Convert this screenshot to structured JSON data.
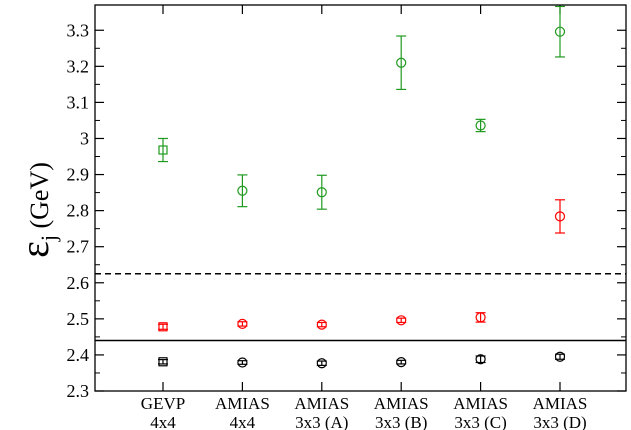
{
  "chart_data": {
    "type": "scatter",
    "ylabel": "εj (GeV)",
    "ylabel_main": "ε",
    "ylabel_sub": "j",
    "ylabel_rest": " (GeV)",
    "ylim": [
      2.3,
      3.37
    ],
    "yticks": [
      "2.3",
      "2.4",
      "2.5",
      "2.6",
      "2.7",
      "2.8",
      "2.9",
      "3",
      "3.1",
      "3.2",
      "3.3"
    ],
    "categories": [
      [
        "GEVP",
        "4x4"
      ],
      [
        "AMIAS",
        "4x4"
      ],
      [
        "AMIAS",
        "3x3 (A)"
      ],
      [
        "AMIAS",
        "3x3 (B)"
      ],
      [
        "AMIAS",
        "3x3 (C)"
      ],
      [
        "AMIAS",
        "3x3 (D)"
      ]
    ],
    "hlines": [
      {
        "value": 2.44,
        "style": "solid",
        "color": "#000000"
      },
      {
        "value": 2.625,
        "style": "dashed",
        "color": "#000000"
      }
    ],
    "series": [
      {
        "color": "#000000",
        "points": [
          {
            "x": 0,
            "y": 2.381,
            "err": 0.006,
            "marker": "square"
          },
          {
            "x": 1,
            "y": 2.379,
            "err": 0.005,
            "marker": "circle"
          },
          {
            "x": 2,
            "y": 2.377,
            "err": 0.006,
            "marker": "circle"
          },
          {
            "x": 3,
            "y": 2.38,
            "err": 0.005,
            "marker": "circle"
          },
          {
            "x": 4,
            "y": 2.388,
            "err": 0.009,
            "marker": "circle"
          },
          {
            "x": 5,
            "y": 2.395,
            "err": 0.007,
            "marker": "circle"
          }
        ]
      },
      {
        "color": "#ff0000",
        "points": [
          {
            "x": 0,
            "y": 2.478,
            "err": 0.007,
            "marker": "square"
          },
          {
            "x": 1,
            "y": 2.486,
            "err": 0.006,
            "marker": "circle"
          },
          {
            "x": 2,
            "y": 2.484,
            "err": 0.006,
            "marker": "circle"
          },
          {
            "x": 3,
            "y": 2.496,
            "err": 0.006,
            "marker": "circle"
          },
          {
            "x": 4,
            "y": 2.504,
            "err": 0.013,
            "marker": "circle"
          },
          {
            "x": 5,
            "y": 2.784,
            "err": 0.046,
            "marker": "circle"
          }
        ]
      },
      {
        "color": "#1f9a1f",
        "points": [
          {
            "x": 0,
            "y": 2.968,
            "err": 0.032,
            "marker": "square"
          },
          {
            "x": 1,
            "y": 2.855,
            "err": 0.044,
            "marker": "circle"
          },
          {
            "x": 2,
            "y": 2.851,
            "err": 0.047,
            "marker": "circle"
          },
          {
            "x": 3,
            "y": 3.21,
            "err": 0.074,
            "marker": "circle"
          },
          {
            "x": 4,
            "y": 3.036,
            "err": 0.017,
            "marker": "circle"
          },
          {
            "x": 5,
            "y": 3.296,
            "err": 0.07,
            "marker": "circle"
          }
        ]
      }
    ],
    "grid": false,
    "legend": "none"
  }
}
